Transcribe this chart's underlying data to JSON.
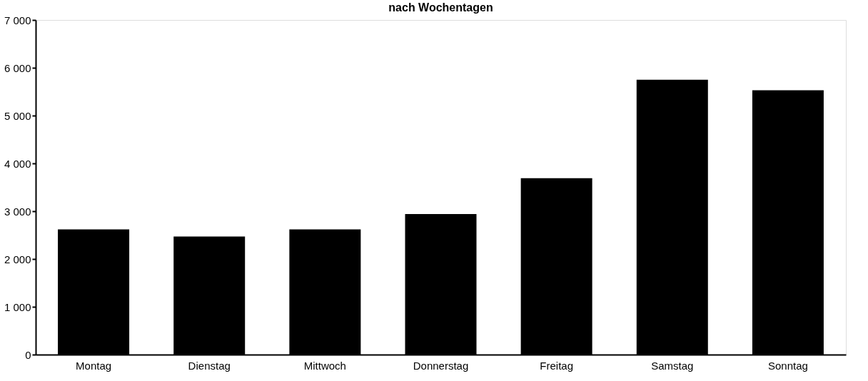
{
  "chart_data": {
    "type": "bar",
    "title": "nach Wochentagen",
    "categories": [
      "Montag",
      "Dienstag",
      "Mittwoch",
      "Donnerstag",
      "Freitag",
      "Samstag",
      "Sonntag"
    ],
    "values": [
      2620,
      2470,
      2620,
      2940,
      3690,
      5750,
      5530
    ],
    "color": "#000000",
    "ylim": [
      0,
      7000
    ],
    "yticks": [
      {
        "value": 0,
        "label": "0"
      },
      {
        "value": 1000,
        "label": "1 000"
      },
      {
        "value": 2000,
        "label": "2 000"
      },
      {
        "value": 3000,
        "label": "3 000"
      },
      {
        "value": 4000,
        "label": "4 000"
      },
      {
        "value": 5000,
        "label": "5 000"
      },
      {
        "value": 6000,
        "label": "6 000"
      },
      {
        "value": 7000,
        "label": "7 000"
      }
    ],
    "grid": false
  }
}
